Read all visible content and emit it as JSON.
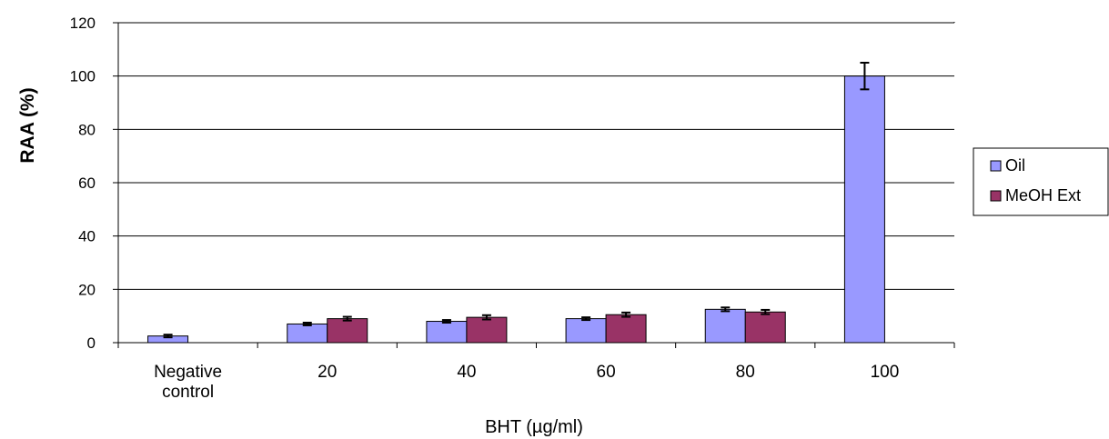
{
  "chart_data": {
    "type": "bar",
    "categories": [
      "Negative control",
      "20",
      "40",
      "60",
      "80",
      "100"
    ],
    "category_label_lines": [
      [
        "Negative",
        "control"
      ],
      [
        "20"
      ],
      [
        "40"
      ],
      [
        "60"
      ],
      [
        "80"
      ],
      [
        "100"
      ]
    ],
    "series": [
      {
        "name": "Oil",
        "color": "#9999ff",
        "values": [
          2.5,
          7,
          8,
          9,
          12.5,
          100
        ],
        "errors": [
          0.5,
          0.5,
          0.5,
          0.5,
          0.7,
          5
        ]
      },
      {
        "name": "MeOH Ext",
        "color": "#993366",
        "values": [
          null,
          9,
          9.5,
          10.5,
          11.5,
          null
        ],
        "errors": [
          null,
          0.7,
          0.8,
          0.8,
          0.8,
          null
        ]
      }
    ],
    "xlabel": "BHT (µg/ml)",
    "ylabel": "RAA (%)",
    "ylim": [
      0,
      120
    ],
    "yticks": [
      0,
      20,
      40,
      60,
      80,
      100,
      120
    ],
    "grid": true,
    "legend_position": "right"
  }
}
